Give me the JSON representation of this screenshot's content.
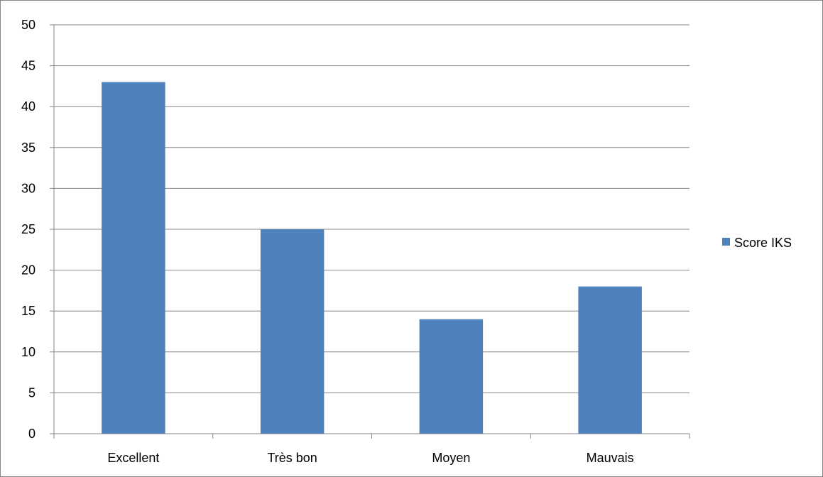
{
  "chart_data": {
    "type": "bar",
    "categories": [
      "Excellent",
      "Très bon",
      "Moyen",
      "Mauvais"
    ],
    "series": [
      {
        "name": "Score IKS",
        "values": [
          43,
          25,
          14,
          18
        ],
        "color": "#4F81BD"
      }
    ],
    "ylim": [
      0,
      50
    ],
    "yticks": [
      0,
      5,
      10,
      15,
      20,
      25,
      30,
      35,
      40,
      45,
      50
    ],
    "grid": true,
    "legend_position": "right",
    "title": "",
    "xlabel": "",
    "ylabel": ""
  },
  "colors": {
    "bar": "#4F81BD",
    "grid": "#868686",
    "border": "#868686"
  }
}
